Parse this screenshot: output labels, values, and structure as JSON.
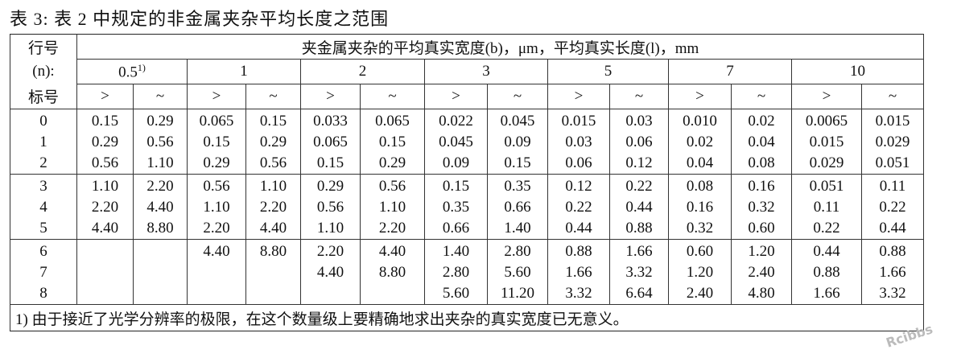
{
  "title": "表 3:  表 2 中规定的非金属夹杂平均长度之范围",
  "table": {
    "row_header": [
      "行号",
      "(n):",
      "标号"
    ],
    "main_header": "夹金属夹杂的平均真实宽度(b)，μm，平均真实长度(l)，mm",
    "groups": [
      {
        "label": "0.5",
        "note": "1)"
      },
      {
        "label": "1"
      },
      {
        "label": "2"
      },
      {
        "label": "3"
      },
      {
        "label": "5"
      },
      {
        "label": "7"
      },
      {
        "label": "10"
      }
    ],
    "subheaders": [
      ">",
      "~",
      ">",
      "~",
      ">",
      "~",
      ">",
      "~",
      ">",
      "~",
      ">",
      "~",
      ">",
      "~"
    ],
    "rows": [
      {
        "label": "0",
        "cells": [
          "0.15",
          "0.29",
          "0.065",
          "0.15",
          "0.033",
          "0.065",
          "0.022",
          "0.045",
          "0.015",
          "0.03",
          "0.010",
          "0.02",
          "0.0065",
          "0.015"
        ]
      },
      {
        "label": "1",
        "cells": [
          "0.29",
          "0.56",
          "0.15",
          "0.29",
          "0.065",
          "0.15",
          "0.045",
          "0.09",
          "0.03",
          "0.06",
          "0.02",
          "0.04",
          "0.015",
          "0.029"
        ]
      },
      {
        "label": "2",
        "cells": [
          "0.56",
          "1.10",
          "0.29",
          "0.56",
          "0.15",
          "0.29",
          "0.09",
          "0.15",
          "0.06",
          "0.12",
          "0.04",
          "0.08",
          "0.029",
          "0.051"
        ]
      },
      {
        "label": "3",
        "cells": [
          "1.10",
          "2.20",
          "0.56",
          "1.10",
          "0.29",
          "0.56",
          "0.15",
          "0.35",
          "0.12",
          "0.22",
          "0.08",
          "0.16",
          "0.051",
          "0.11"
        ]
      },
      {
        "label": "4",
        "cells": [
          "2.20",
          "4.40",
          "1.10",
          "2.20",
          "0.56",
          "1.10",
          "0.35",
          "0.66",
          "0.22",
          "0.44",
          "0.16",
          "0.32",
          "0.11",
          "0.22"
        ]
      },
      {
        "label": "5",
        "cells": [
          "4.40",
          "8.80",
          "2.20",
          "4.40",
          "1.10",
          "2.20",
          "0.66",
          "1.40",
          "0.44",
          "0.88",
          "0.32",
          "0.60",
          "0.22",
          "0.44"
        ]
      },
      {
        "label": "6",
        "cells": [
          null,
          null,
          "4.40",
          "8.80",
          "2.20",
          "4.40",
          "1.40",
          "2.80",
          "0.88",
          "1.66",
          "0.60",
          "1.20",
          "0.44",
          "0.88"
        ]
      },
      {
        "label": "7",
        "cells": [
          null,
          null,
          null,
          null,
          "4.40",
          "8.80",
          "2.80",
          "5.60",
          "1.66",
          "3.32",
          "1.20",
          "2.40",
          "0.88",
          "1.66"
        ]
      },
      {
        "label": "8",
        "cells": [
          null,
          null,
          null,
          null,
          null,
          null,
          "5.60",
          "11.20",
          "3.32",
          "6.64",
          "2.40",
          "4.80",
          "1.66",
          "3.32"
        ]
      }
    ],
    "footnote": "1)  由于接近了光学分辨率的极限，在这个数量级上要精确地求出夹杂的真实宽度已无意义。"
  },
  "watermark": "Rcibbs"
}
